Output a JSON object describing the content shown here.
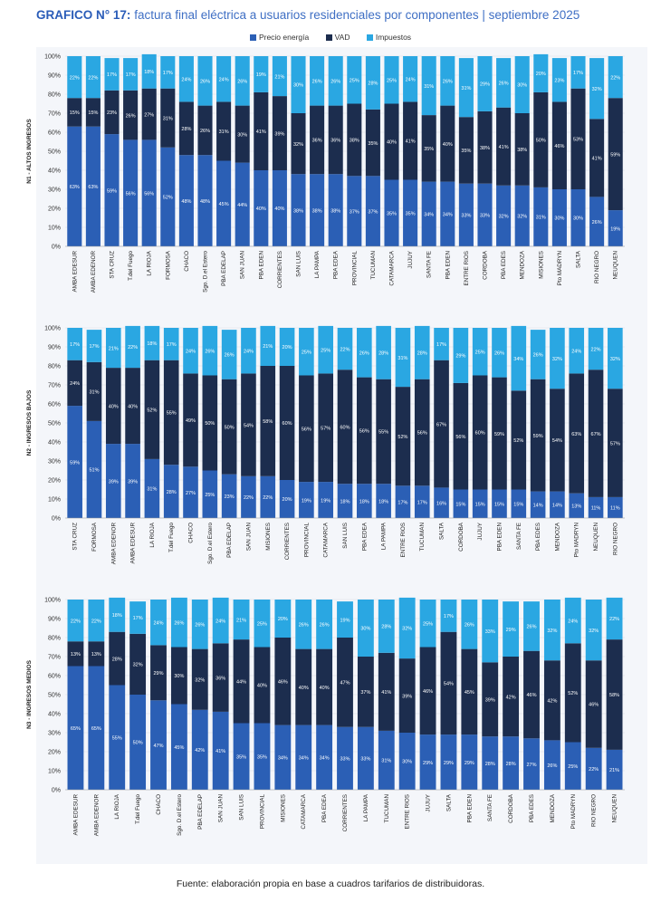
{
  "header": {
    "prefix": "GRAFICO N° 17:",
    "text": "factura final eléctrica a usuarios residenciales por componentes | septiembre 2025"
  },
  "legend": [
    {
      "label": "Precio energía",
      "color": "#2b5fb5"
    },
    {
      "label": "VAD",
      "color": "#1c2d4e"
    },
    {
      "label": "Impuestos",
      "color": "#2aa7e2"
    }
  ],
  "footer": "Fuente: elaboración propia en base a cuadros tarifarios de distribuidoras.",
  "chart_data": [
    {
      "type": "bar",
      "stacked": true,
      "ylabel": "N1 - ALTOS INGRESOS",
      "ylim": [
        0,
        100
      ],
      "yticks": [
        "0%",
        "10%",
        "20%",
        "30%",
        "40%",
        "50%",
        "60%",
        "70%",
        "80%",
        "90%",
        "100%"
      ],
      "categories": [
        "AMBA EDESUR",
        "AMBA EDENOR",
        "STA CRUZ",
        "T.del Fuego",
        "LA RIOJA",
        "FORMOSA",
        "CHACO",
        "Sgo. D.el Estero",
        "PBA EDELAP",
        "SAN JUAN",
        "PBA EDEN",
        "CORRIENTES",
        "SAN LUIS",
        "LA PAMPA",
        "PBA EDEA",
        "PROVINCIAL",
        "TUCUMAN",
        "CATAMARCA",
        "JUJUY",
        "SANTA FE",
        "PBA EDEN",
        "ENTRE RIOS",
        "CORDOBA",
        "PBA EDES",
        "MENDOZA",
        "MISIONES",
        "Pto MADRYN",
        "SALTA",
        "RIO NEGRO",
        "NEUQUEN"
      ],
      "series": [
        {
          "name": "Precio energía",
          "values": [
            63,
            63,
            59,
            56,
            56,
            52,
            48,
            48,
            45,
            44,
            40,
            40,
            38,
            38,
            38,
            37,
            37,
            35,
            35,
            34,
            34,
            33,
            33,
            32,
            32,
            31,
            30,
            30,
            26,
            19
          ]
        },
        {
          "name": "VAD",
          "values": [
            15,
            15,
            23,
            26,
            27,
            31,
            28,
            26,
            31,
            30,
            41,
            39,
            32,
            36,
            36,
            38,
            35,
            40,
            41,
            35,
            40,
            35,
            38,
            41,
            38,
            50,
            46,
            53,
            41,
            59
          ]
        },
        {
          "name": "Impuestos",
          "values": [
            22,
            22,
            17,
            17,
            18,
            17,
            24,
            26,
            24,
            26,
            19,
            21,
            30,
            26,
            26,
            25,
            28,
            25,
            24,
            31,
            26,
            31,
            29,
            26,
            30,
            20,
            23,
            17,
            32,
            22
          ]
        }
      ]
    },
    {
      "type": "bar",
      "stacked": true,
      "ylabel": "N2 - INGRESOS BAJOS",
      "ylim": [
        0,
        100
      ],
      "yticks": [
        "0%",
        "10%",
        "20%",
        "30%",
        "40%",
        "50%",
        "60%",
        "70%",
        "80%",
        "90%",
        "100%"
      ],
      "categories": [
        "STA CRUZ",
        "FORMOSA",
        "AMBA EDENOR",
        "AMBA EDESUR",
        "LA RIOJA",
        "T.del Fuego",
        "CHACO",
        "Sgo. D.el Estero",
        "PBA EDELAP",
        "SAN JUAN",
        "MISIONES",
        "CORRIENTES",
        "PROVINCIAL",
        "CATAMARCA",
        "SAN LUIS",
        "PBA EDEA",
        "LA PAMPA",
        "ENTRE RIOS",
        "TUCUMAN",
        "SALTA",
        "CORDOBA",
        "JUJUY",
        "PBA EDEN",
        "SANTA FE",
        "PBA EDES",
        "MENDOZA",
        "Pto MADRYN",
        "NEUQUEN",
        "RIO NEGRO"
      ],
      "series": [
        {
          "name": "Precio energía",
          "values": [
            59,
            51,
            39,
            39,
            31,
            28,
            27,
            25,
            23,
            22,
            22,
            20,
            19,
            19,
            18,
            18,
            18,
            17,
            17,
            16,
            15,
            15,
            15,
            15,
            14,
            14,
            13,
            11,
            11
          ]
        },
        {
          "name": "VAD",
          "values": [
            24,
            31,
            40,
            40,
            52,
            55,
            49,
            50,
            50,
            54,
            58,
            60,
            56,
            57,
            60,
            56,
            55,
            52,
            56,
            67,
            56,
            60,
            59,
            52,
            59,
            54,
            63,
            67,
            57
          ]
        },
        {
          "name": "Impuestos",
          "values": [
            17,
            17,
            21,
            22,
            18,
            17,
            24,
            26,
            26,
            24,
            21,
            20,
            25,
            25,
            22,
            26,
            28,
            31,
            28,
            17,
            29,
            25,
            26,
            34,
            26,
            32,
            24,
            22,
            32
          ]
        }
      ]
    },
    {
      "type": "bar",
      "stacked": true,
      "ylabel": "N3 - INGRESOS MEDIOS",
      "ylim": [
        0,
        100
      ],
      "yticks": [
        "0%",
        "10%",
        "20%",
        "30%",
        "40%",
        "50%",
        "60%",
        "70%",
        "80%",
        "90%",
        "100%"
      ],
      "categories": [
        "AMBA EDESUR",
        "AMBA EDENOR",
        "LA RIOJA",
        "T.del Fuego",
        "CHACO",
        "Sgo. D.el Estero",
        "PBA EDELAP",
        "SAN JUAN",
        "SAN LUIS",
        "PROVINCIAL",
        "MISIONES",
        "CATAMARCA",
        "PBA EDEA",
        "CORRIENTES",
        "LA PAMPA",
        "TUCUMAN",
        "ENTRE RIOS",
        "JUJUY",
        "SALTA",
        "PBA EDEN",
        "SANTA FE",
        "CORDOBA",
        "PBA EDES",
        "MENDOZA",
        "Pto MADRYN",
        "RIO NEGRO",
        "NEUQUEN"
      ],
      "series": [
        {
          "name": "Precio energía",
          "values": [
            65,
            65,
            55,
            50,
            47,
            45,
            42,
            41,
            35,
            35,
            34,
            34,
            34,
            33,
            33,
            31,
            30,
            29,
            29,
            29,
            28,
            28,
            27,
            26,
            25,
            22,
            21
          ]
        },
        {
          "name": "VAD",
          "values": [
            13,
            13,
            28,
            32,
            29,
            30,
            32,
            36,
            44,
            40,
            46,
            40,
            40,
            47,
            37,
            41,
            39,
            46,
            54,
            45,
            39,
            42,
            46,
            42,
            52,
            46,
            58
          ]
        },
        {
          "name": "Impuestos",
          "values": [
            22,
            22,
            18,
            17,
            24,
            26,
            26,
            24,
            21,
            25,
            20,
            26,
            26,
            19,
            30,
            28,
            32,
            25,
            17,
            26,
            33,
            29,
            26,
            32,
            24,
            32,
            22
          ]
        }
      ]
    }
  ]
}
